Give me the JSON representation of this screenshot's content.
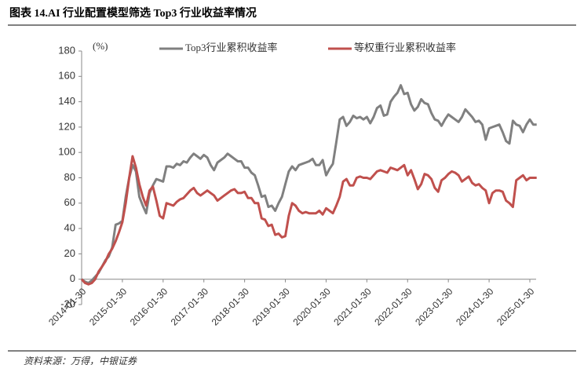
{
  "chart_data": {
    "type": "line",
    "title": "图表 14.AI 行业配置模型筛选 Top3 行业收益率情况",
    "y_unit": "(%)",
    "source": "资料来源：万得，中银证券",
    "categories": [
      "2014-01-30",
      null,
      null,
      null,
      null,
      null,
      null,
      null,
      null,
      null,
      null,
      null,
      "2015-01-30",
      null,
      null,
      null,
      null,
      null,
      null,
      null,
      null,
      null,
      null,
      null,
      "2016-01-30",
      null,
      null,
      null,
      null,
      null,
      null,
      null,
      null,
      null,
      null,
      null,
      "2017-01-30",
      null,
      null,
      null,
      null,
      null,
      null,
      null,
      null,
      null,
      null,
      null,
      "2018-01-30",
      null,
      null,
      null,
      null,
      null,
      null,
      null,
      null,
      null,
      null,
      null,
      "2019-01-30",
      null,
      null,
      null,
      null,
      null,
      null,
      null,
      null,
      null,
      null,
      null,
      "2020-01-30",
      null,
      null,
      null,
      null,
      null,
      null,
      null,
      null,
      null,
      null,
      null,
      "2021-01-30",
      null,
      null,
      null,
      null,
      null,
      null,
      null,
      null,
      null,
      null,
      null,
      "2022-01-30",
      null,
      null,
      null,
      null,
      null,
      null,
      null,
      null,
      null,
      null,
      null,
      "2023-01-30",
      null,
      null,
      null,
      null,
      null,
      null,
      null,
      null,
      null,
      null,
      null,
      "2024-01-30",
      null,
      null,
      null,
      null,
      null,
      null,
      null,
      null,
      null,
      null,
      null,
      "2025-01-30",
      null,
      null
    ],
    "series": [
      {
        "name": "Top3行业累积收益率",
        "color": "#808080",
        "values": [
          0,
          -2,
          -3,
          -1,
          2,
          5,
          10,
          15,
          18,
          25,
          43,
          44,
          46,
          65,
          80,
          90,
          85,
          65,
          58,
          52,
          68,
          74,
          79,
          78,
          77,
          89,
          89,
          88,
          91,
          90,
          93,
          92,
          96,
          99,
          97,
          95,
          98,
          96,
          90,
          86,
          92,
          94,
          96,
          99,
          97,
          95,
          93,
          93,
          88,
          88,
          84,
          82,
          74,
          65,
          66,
          57,
          58,
          54,
          60,
          65,
          75,
          85,
          89,
          86,
          90,
          91,
          92,
          93,
          95,
          90,
          90,
          94,
          82,
          87,
          91,
          108,
          126,
          128,
          121,
          124,
          129,
          127,
          128,
          126,
          128,
          123,
          128,
          135,
          137,
          129,
          130,
          140,
          144,
          147,
          153,
          146,
          147,
          138,
          133,
          136,
          142,
          139,
          138,
          131,
          126,
          125,
          121,
          126,
          130,
          128,
          126,
          124,
          128,
          134,
          131,
          128,
          124,
          125,
          122,
          110,
          119,
          120,
          121,
          122,
          116,
          109,
          107,
          125,
          122,
          121,
          116,
          122,
          126,
          122,
          122
        ]
      },
      {
        "name": "等权重行业累积收益率",
        "color": "#c0504d",
        "values": [
          0,
          -3,
          -4,
          -3,
          0,
          6,
          10,
          14,
          20,
          24,
          30,
          37,
          45,
          60,
          80,
          97,
          88,
          75,
          65,
          58,
          70,
          73,
          62,
          50,
          48,
          60,
          59,
          58,
          61,
          63,
          64,
          67,
          70,
          72,
          68,
          66,
          68,
          70,
          68,
          66,
          62,
          64,
          66,
          68,
          70,
          71,
          68,
          68,
          69,
          64,
          64,
          60,
          60,
          48,
          47,
          42,
          43,
          35,
          36,
          33,
          34,
          50,
          60,
          58,
          54,
          52,
          53,
          52,
          52,
          52,
          54,
          51,
          56,
          54,
          52,
          58,
          65,
          77,
          79,
          74,
          74,
          80,
          81,
          80,
          80,
          79,
          82,
          85,
          86,
          85,
          84,
          88,
          87,
          86,
          88,
          90,
          82,
          86,
          79,
          71,
          75,
          83,
          82,
          79,
          72,
          69,
          78,
          80,
          83,
          85,
          84,
          82,
          77,
          79,
          81,
          76,
          74,
          75,
          72,
          70,
          60,
          68,
          70,
          70,
          69,
          62,
          60,
          57,
          78,
          80,
          82,
          78,
          80,
          80,
          80
        ]
      }
    ],
    "ylim": [
      -20,
      180
    ],
    "yticks": [
      -20,
      0,
      20,
      40,
      60,
      80,
      100,
      120,
      140,
      160,
      180
    ],
    "legend": "top"
  }
}
